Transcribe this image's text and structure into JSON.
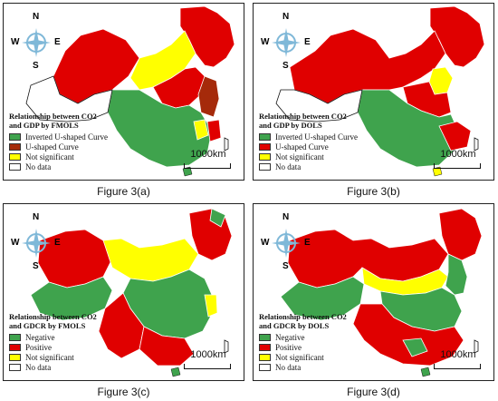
{
  "colors": {
    "green": "#3fa34d",
    "red": "#e00000",
    "brown": "#a52a0a",
    "yellow": "#ffff00",
    "white": "#ffffff",
    "outline": "#111111",
    "compass_blue": "#7fb8d8"
  },
  "compass": {
    "n": "N",
    "s": "S",
    "w": "W",
    "e": "E"
  },
  "scale_text": "1000km",
  "panels": [
    {
      "caption": "Figure 3(a)",
      "legend_title": "Relationship between CO2\nand GDP by FMOLS",
      "legend": [
        {
          "label": "Inverted U-shaped Curve",
          "color": "#3fa34d"
        },
        {
          "label": "U-shaped Curve",
          "color": "#a52a0a"
        },
        {
          "label": "Not significant",
          "color": "#ffff00"
        },
        {
          "label": "No data",
          "color": "#ffffff"
        }
      ]
    },
    {
      "caption": "Figure 3(b)",
      "legend_title": "Relationship between CO2\nand GDP by DOLS",
      "legend": [
        {
          "label": "Inverted U-shaped Curve",
          "color": "#3fa34d"
        },
        {
          "label": "U-shaped Curve",
          "color": "#e00000"
        },
        {
          "label": "Not significant",
          "color": "#ffff00"
        },
        {
          "label": "No data",
          "color": "#ffffff"
        }
      ]
    },
    {
      "caption": "Figure 3(c)",
      "legend_title": "Relationship between CO2\nand GDCR by FMOLS",
      "legend": [
        {
          "label": "Negative",
          "color": "#3fa34d"
        },
        {
          "label": "Positive",
          "color": "#e00000"
        },
        {
          "label": "Not significant",
          "color": "#ffff00"
        },
        {
          "label": "No data",
          "color": "#ffffff"
        }
      ]
    },
    {
      "caption": "Figure 3(d)",
      "legend_title": "Relationship between CO2\nand GDCR by DOLS",
      "legend": [
        {
          "label": "Negative",
          "color": "#3fa34d"
        },
        {
          "label": "Positive",
          "color": "#e00000"
        },
        {
          "label": "Not significant",
          "color": "#ffff00"
        },
        {
          "label": "No data",
          "color": "#ffffff"
        }
      ]
    }
  ]
}
